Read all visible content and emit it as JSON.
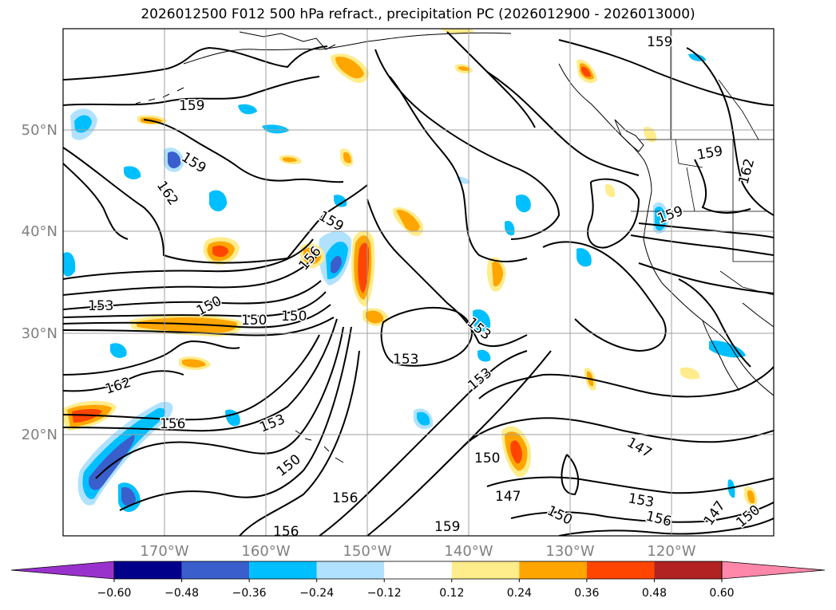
{
  "title": "2026012500 F012 500 hPa refract., precipitation PC (2026012900 - 2026013000)",
  "map": {
    "lat_labels": [
      "50°N",
      "40°N",
      "30°N",
      "20°N"
    ],
    "lon_labels": [
      "170°W",
      "160°W",
      "150°W",
      "140°W",
      "130°W",
      "120°W"
    ],
    "contour_labels": [
      "159",
      "159",
      "159",
      "162",
      "159",
      "156",
      "153",
      "150",
      "150",
      "150",
      "153",
      "153",
      "162",
      "156",
      "153",
      "150",
      "150",
      "147",
      "156",
      "147",
      "150",
      "153",
      "156",
      "153",
      "150",
      "159",
      "162",
      "159",
      "156",
      "159",
      "147"
    ]
  },
  "colorbar": {
    "ticks": [
      "−0.60",
      "−0.48",
      "−0.36",
      "−0.24",
      "−0.12",
      "0.12",
      "0.24",
      "0.36",
      "0.48",
      "0.60"
    ],
    "colors": [
      "#9932cc",
      "#00008b",
      "#3a5fcd",
      "#00bfff",
      "#b0e2ff",
      "#ffffff",
      "#ffec8b",
      "#ffa500",
      "#ff4500",
      "#b22222",
      "#ff88aa"
    ]
  },
  "colors": {
    "blue_light": "#b0e2ff",
    "blue_mid": "#00bfff",
    "blue_dark": "#3a5fcd",
    "yellow": "#ffec8b",
    "orange": "#ffa500",
    "red": "#ff4500",
    "grid": "#a0a0a0",
    "contour": "#000000"
  }
}
